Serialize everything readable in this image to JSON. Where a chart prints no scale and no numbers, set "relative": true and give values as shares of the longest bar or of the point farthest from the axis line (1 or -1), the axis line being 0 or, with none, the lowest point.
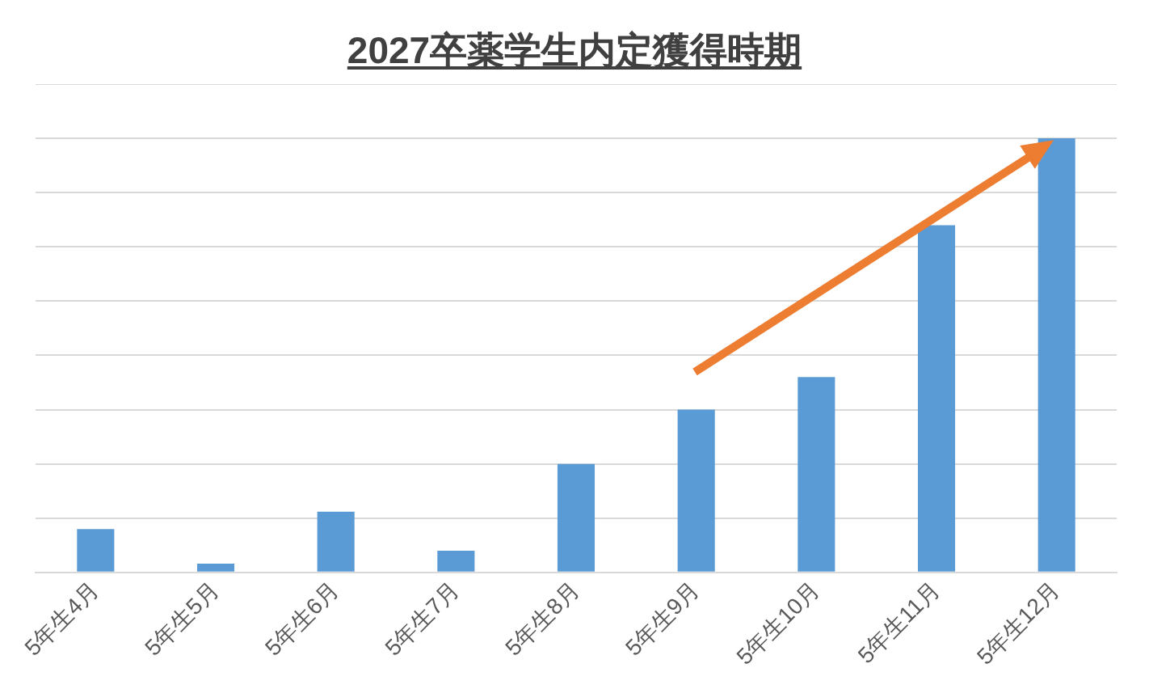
{
  "chart_data": {
    "type": "bar",
    "title": "2027卒薬学生内定獲得時期",
    "categories": [
      "5年生4月",
      "5年生5月",
      "5年生6月",
      "5年生7月",
      "5年生8月",
      "5年生9月",
      "5年生10月",
      "5年生11月",
      "5年生12月"
    ],
    "values": [
      0.1,
      0.02,
      0.14,
      0.05,
      0.25,
      0.375,
      0.45,
      0.8,
      1
    ],
    "color": "#5b9bd5",
    "relative": true,
    "grid": "y"
  }
}
